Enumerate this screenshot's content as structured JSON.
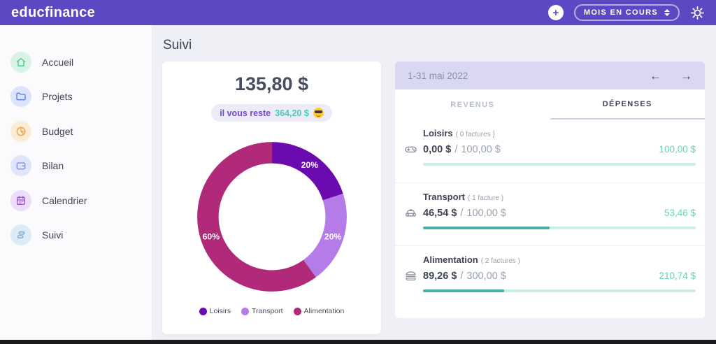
{
  "topbar": {
    "brand": "educfinance",
    "add_icon": "+",
    "period_select": "MOIS EN COURS"
  },
  "sidebar": {
    "items": [
      {
        "label": "Accueil",
        "icon": "home-icon",
        "icon_color": "#4bc690",
        "icon_bg": "#d9f3e7"
      },
      {
        "label": "Projets",
        "icon": "folder-icon",
        "icon_color": "#5a7de0",
        "icon_bg": "#dbe4fb"
      },
      {
        "label": "Budget",
        "icon": "pie-chart-icon",
        "icon_color": "#e8a53f",
        "icon_bg": "#fbecd4"
      },
      {
        "label": "Bilan",
        "icon": "wallet-icon",
        "icon_color": "#7b8cf0",
        "icon_bg": "#e0e5fc"
      },
      {
        "label": "Calendrier",
        "icon": "calendar-icon",
        "icon_color": "#9b55d3",
        "icon_bg": "#ecddf8"
      },
      {
        "label": "Suivi",
        "icon": "route-icon",
        "icon_color": "#74a7d8",
        "icon_bg": "#dcebf6"
      }
    ]
  },
  "page": {
    "title": "Suivi"
  },
  "summary_card": {
    "total": "135,80 $",
    "badge": {
      "prefix": "il vous reste",
      "amount": "364,20 $",
      "emoji": "sunglasses-face"
    }
  },
  "chart_data": {
    "type": "pie",
    "donut": true,
    "categories": [
      "Loisirs",
      "Transport",
      "Alimentation"
    ],
    "values": [
      20,
      20,
      60
    ],
    "labels": [
      "20%",
      "20%",
      "60%"
    ],
    "colors": [
      "#6b0aae",
      "#b47be9",
      "#b12a79"
    ],
    "legend_position": "bottom",
    "title": ""
  },
  "panel": {
    "period": "1-31 mai 2022",
    "prev_arrow": "←",
    "next_arrow": "→",
    "tabs": [
      {
        "label": "REVENUS",
        "active": false
      },
      {
        "label": "DÉPENSES",
        "active": true
      }
    ],
    "amount_separator": "/",
    "rows": [
      {
        "title": "Loisirs",
        "count": "( 0 factures )",
        "icon": "gamepad-icon",
        "spent": "0,00 $",
        "budget": "100,00 $",
        "remaining": "100,00 $",
        "progress_pct": 0
      },
      {
        "title": "Transport",
        "count": "( 1 facture )",
        "icon": "taxi-icon",
        "spent": "46,54 $",
        "budget": "100,00 $",
        "remaining": "53,46 $",
        "progress_pct": 46.5
      },
      {
        "title": "Alimentation",
        "count": "( 2 factures )",
        "icon": "burger-icon",
        "spent": "89,26 $",
        "budget": "300,00 $",
        "remaining": "210,74 $",
        "progress_pct": 29.8
      }
    ]
  },
  "colors": {
    "topbar": "#5a49c3",
    "panel_header": "#dad7f3",
    "progress_track": "#c9f0e6",
    "progress_fill": "#43b1a4",
    "remaining_text": "#66d4b5",
    "badge_prefix": "#6e4ad2",
    "badge_amount": "#3fd2ad"
  }
}
